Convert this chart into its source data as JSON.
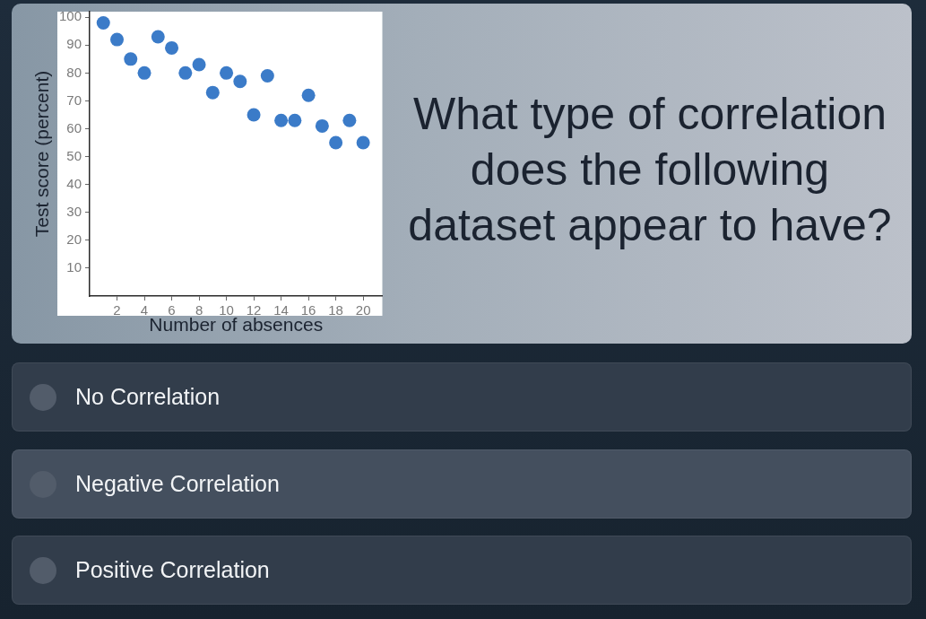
{
  "chart_data": {
    "type": "scatter",
    "title": "What type of correlation does the following dataset appear to have?",
    "xlabel": "Number of absences",
    "ylabel": "Test score (percent)",
    "x": [
      1,
      2,
      3,
      4,
      5,
      6,
      7,
      8,
      9,
      10,
      11,
      12,
      13,
      14,
      15,
      16,
      17,
      18,
      19,
      20
    ],
    "values": [
      98,
      92,
      85,
      80,
      93,
      89,
      80,
      83,
      73,
      80,
      77,
      65,
      79,
      63,
      63,
      72,
      61,
      55,
      63,
      55
    ],
    "color": "#3b7bc8",
    "marker": "circle",
    "xlim": [
      0,
      21.4
    ],
    "ylim": [
      0,
      102
    ],
    "xticks": [
      2,
      4,
      6,
      8,
      10,
      12,
      14,
      16,
      18,
      20
    ],
    "yticks": [
      10,
      20,
      30,
      40,
      50,
      60,
      70,
      80,
      90,
      100
    ],
    "grid": false,
    "legend": false,
    "annotations": [
      "No Correlation",
      "Negative Correlation",
      "Positive Correlation"
    ]
  }
}
